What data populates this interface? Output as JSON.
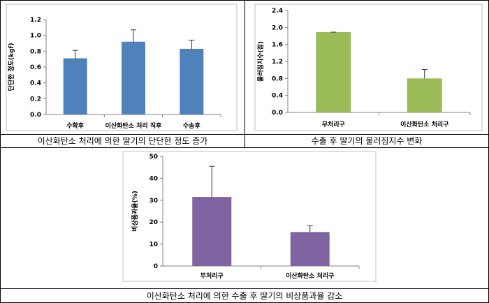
{
  "colors": {
    "blue_bar": "#4f81bd",
    "green_bar": "#9bbb59",
    "purple_bar": "#8064a2"
  },
  "chart_data": [
    {
      "type": "bar",
      "ylabel": "단단한 정도(kgf)",
      "ylim": [
        0,
        1.2
      ],
      "yticks": [
        "0.0",
        "0.2",
        "0.4",
        "0.6",
        "0.8",
        "1.0",
        "1.2"
      ],
      "categories": [
        "수확후",
        "이산화탄소 처리 직후",
        "수송후"
      ],
      "values": [
        0.71,
        0.92,
        0.83
      ],
      "error": [
        0.1,
        0.15,
        0.11
      ],
      "grid": false,
      "caption": "이산화탄소 처리에 의한 딸기의 단단한 정도 증가"
    },
    {
      "type": "bar",
      "ylabel": "물러짐지수(점)",
      "ylim": [
        0,
        2.4
      ],
      "yticks": [
        "0.0",
        "0.4",
        "0.8",
        "1.2",
        "1.6",
        "2.0",
        "2.4"
      ],
      "categories": [
        "무처리구",
        "이산화탄소 처리구"
      ],
      "values": [
        1.89,
        0.8
      ],
      "error": [
        0.0,
        0.21
      ],
      "grid": false,
      "caption": "수출 후 딸기의 물러짐지수 변화"
    },
    {
      "type": "bar",
      "ylabel": "비상품과율(%)",
      "ylim": [
        0,
        50
      ],
      "yticks": [
        "0",
        "10",
        "20",
        "30",
        "40",
        "50"
      ],
      "categories": [
        "무처리구",
        "이산화탄소 처리구"
      ],
      "values": [
        31.5,
        15.5
      ],
      "error": [
        14.0,
        2.8
      ],
      "grid": false,
      "caption": "이산화탄소 처리에 의한 수출 후 딸기의 비상품과율 감소"
    }
  ]
}
